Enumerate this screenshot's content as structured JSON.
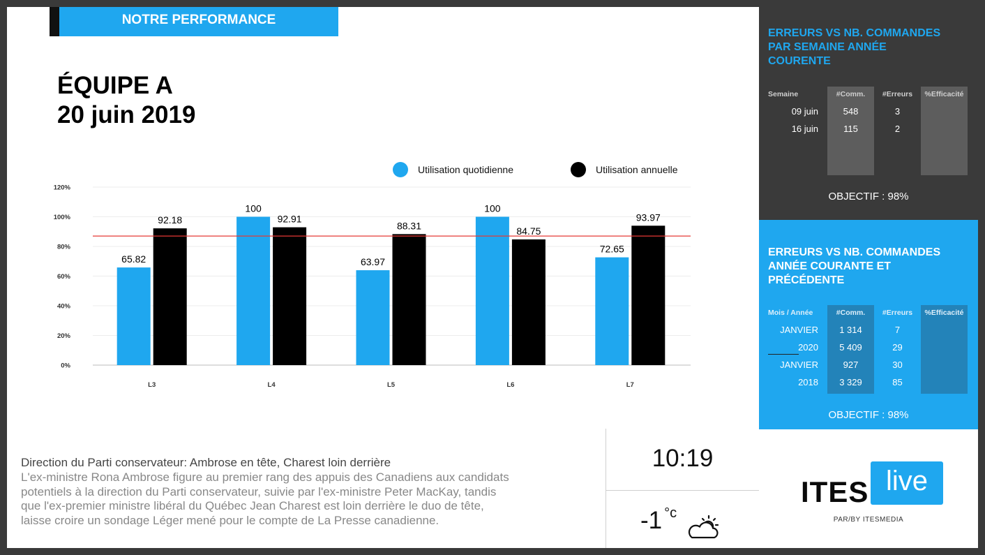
{
  "header": {
    "title": "NOTRE PERFORMANCE"
  },
  "team": {
    "name": "ÉQUIPE A",
    "date": "20 juin 2019"
  },
  "legend": {
    "daily": "Utilisation quotidienne",
    "annual": "Utilisation annuelle"
  },
  "colors": {
    "accent": "#1fa7ef",
    "daily": "#1fa7ef",
    "annual": "#000000",
    "target_line": "#e53935",
    "dark_panel": "#3a3a3a"
  },
  "chart_data": {
    "type": "bar",
    "categories": [
      "L3",
      "L4",
      "L5",
      "L6",
      "L7"
    ],
    "series": [
      {
        "name": "Utilisation quotidienne",
        "values": [
          65.82,
          100,
          63.97,
          100,
          72.65
        ]
      },
      {
        "name": "Utilisation annuelle",
        "values": [
          92.18,
          92.91,
          88.31,
          84.75,
          93.97
        ]
      }
    ],
    "ylim": [
      0,
      120
    ],
    "yticks": [
      "0%",
      "20%",
      "40%",
      "60%",
      "80%",
      "100%",
      "120%"
    ],
    "target": 87,
    "legend": "top-right",
    "grid": true
  },
  "news": {
    "title": "Direction du Parti conservateur: Ambrose en tête, Charest loin derrière",
    "lines": [
      "L'ex-ministre Rona Ambrose figure au premier rang des appuis des Canadiens aux candidats",
      "potentiels à la direction du Parti conservateur, suivie par l'ex-ministre Peter MacKay, tandis",
      "que l'ex-premier ministre libéral du Québec Jean Charest est loin derrière le duo de tête,",
      "laisse croire un sondage Léger mené pour le compte de La Presse canadienne."
    ]
  },
  "clock": {
    "time": "10:19"
  },
  "weather": {
    "temp": "-1",
    "unit": "°c",
    "icon": "partly-cloudy-icon"
  },
  "panel_weekly": {
    "title_lines": [
      "ERREURS VS NB. COMMANDES",
      "PAR SEMAINE ANNÉE",
      "COURENTE"
    ],
    "headers": [
      "Semaine",
      "#Comm.",
      "#Erreurs",
      "%Efficacité"
    ],
    "rows": [
      [
        "09 juin",
        "548",
        "3",
        ""
      ],
      [
        "16 juin",
        "115",
        "2",
        ""
      ]
    ],
    "objective": "OBJECTIF : 98%"
  },
  "panel_yearly": {
    "title_lines": [
      "ERREURS VS NB. COMMANDES",
      "ANNÉE COURANTE ET",
      "PRÉCÉDENTE"
    ],
    "headers": [
      "Mois / Année",
      "#Comm.",
      "#Erreurs",
      "%Efficacité"
    ],
    "rows": [
      [
        "JANVIER",
        "1 314",
        "7",
        ""
      ],
      [
        "2020",
        "5 409",
        "29",
        ""
      ],
      [
        "JANVIER",
        "927",
        "30",
        ""
      ],
      [
        "2018",
        "3 329",
        "85",
        ""
      ]
    ],
    "objective": "OBJECTIF : 98%"
  },
  "logo": {
    "ites": "ITES",
    "live": "live",
    "sub": "PAR/BY ITESMEDIA"
  }
}
